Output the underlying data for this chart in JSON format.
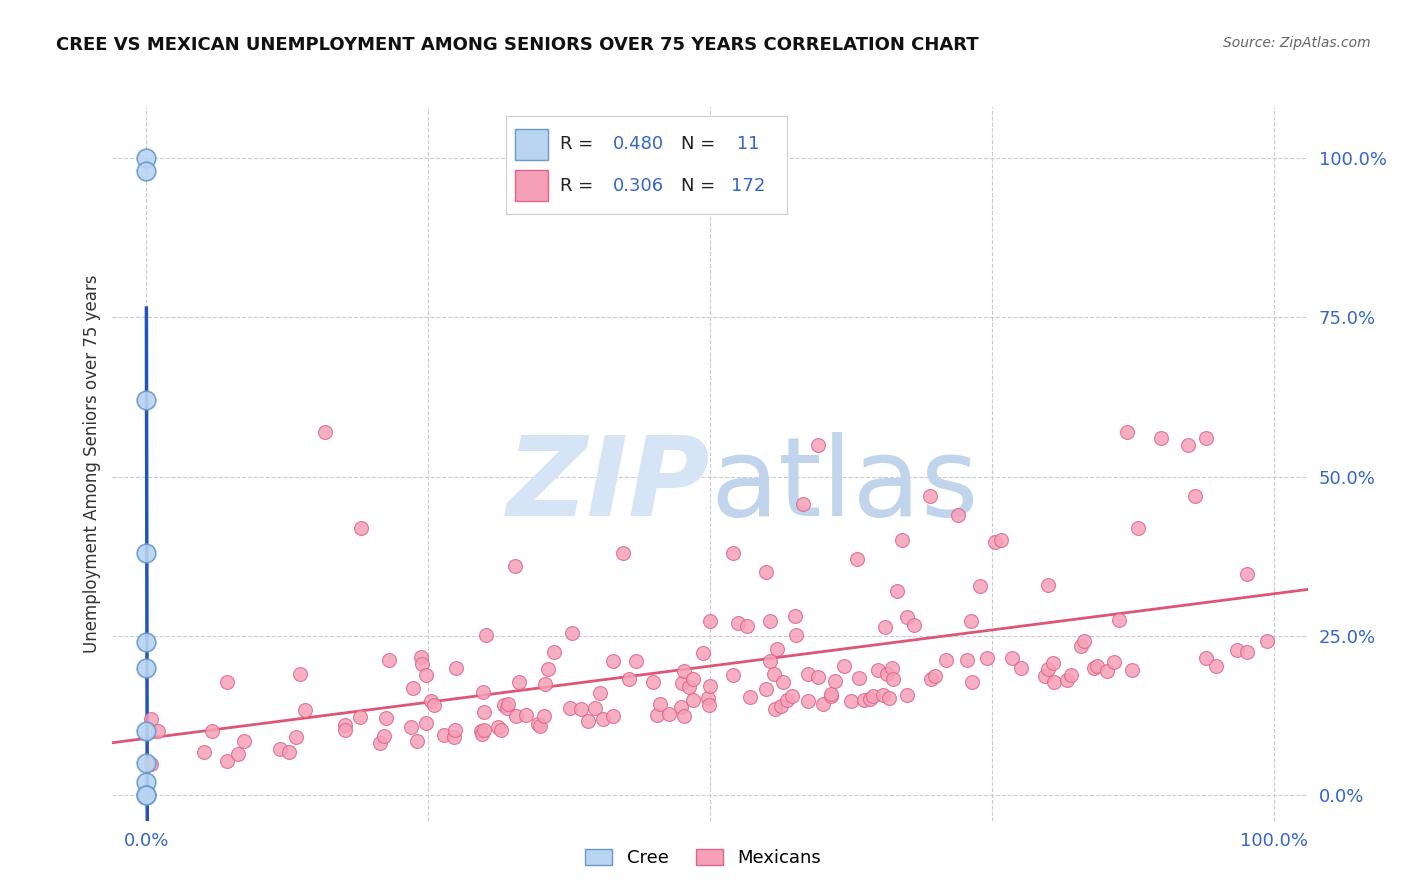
{
  "title": "CREE VS MEXICAN UNEMPLOYMENT AMONG SENIORS OVER 75 YEARS CORRELATION CHART",
  "source": "Source: ZipAtlas.com",
  "ylabel": "Unemployment Among Seniors over 75 years",
  "background_color": "#ffffff",
  "cree_color": "#b8d4f0",
  "cree_edge_color": "#6699cc",
  "mexican_color": "#f5a0b8",
  "mexican_edge_color": "#dd6688",
  "cree_line_color": "#2255bb",
  "mexican_line_color": "#dd5577",
  "cree_R": 0.48,
  "cree_N": 11,
  "mexican_R": 0.306,
  "mexican_N": 172,
  "watermark_zip_color": "#d5e5f5",
  "watermark_atlas_color": "#c0d5ec",
  "xlim": [
    0.0,
    1.0
  ],
  "ylim": [
    0.0,
    1.0
  ],
  "x_ticks": [
    0.0,
    1.0
  ],
  "x_tick_labels": [
    "0.0%",
    "100.0%"
  ],
  "y_ticks": [
    0.0,
    0.25,
    0.5,
    0.75,
    1.0
  ],
  "y_tick_labels": [
    "0.0%",
    "25.0%",
    "50.0%",
    "75.0%",
    "100.0%"
  ]
}
